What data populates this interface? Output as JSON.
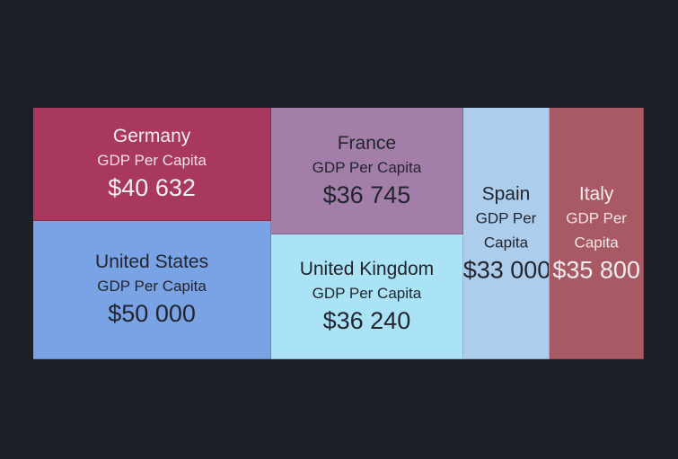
{
  "chart_data": {
    "type": "treemap",
    "metric_label": "GDP Per Capita",
    "items": [
      {
        "name": "Germany",
        "value": 40632,
        "value_label": "$40 632",
        "color": "#a8385d",
        "text": "light"
      },
      {
        "name": "United States",
        "value": 50000,
        "value_label": "$50 000",
        "color": "#7aa3e5",
        "text": "dark"
      },
      {
        "name": "France",
        "value": 36745,
        "value_label": "$36 745",
        "color": "#a27ea8",
        "text": "dark"
      },
      {
        "name": "United Kingdom",
        "value": 36240,
        "value_label": "$36 240",
        "color": "#aae3f5",
        "text": "dark"
      },
      {
        "name": "Spain",
        "value": 33000,
        "value_label": "$33 000",
        "color": "#adcded",
        "text": "dark"
      },
      {
        "name": "Italy",
        "value": 35800,
        "value_label": "$35 800",
        "color": "#a95963",
        "text": "light"
      }
    ]
  }
}
